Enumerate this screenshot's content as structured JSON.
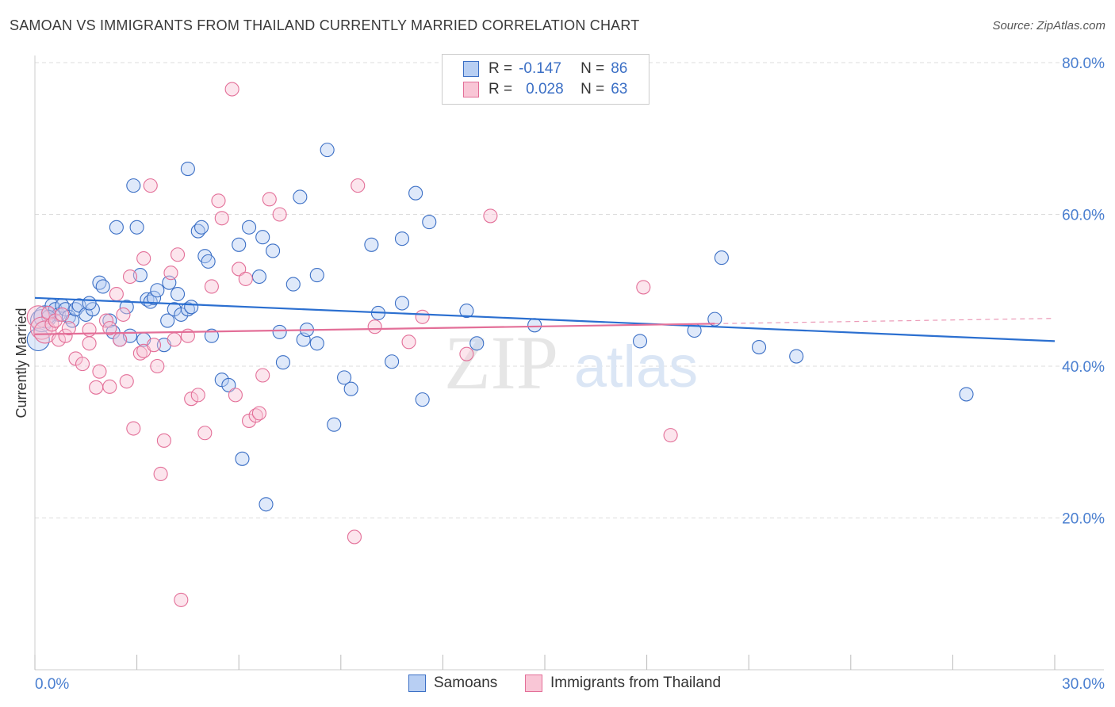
{
  "title": "SAMOAN VS IMMIGRANTS FROM THAILAND CURRENTLY MARRIED CORRELATION CHART",
  "source": "Source: ZipAtlas.com",
  "legend": {
    "r_label": "R =",
    "n_label": "N =",
    "rows": [
      {
        "r": "-0.147",
        "n": "86"
      },
      {
        "r": "0.028",
        "n": "63"
      }
    ]
  },
  "watermark": {
    "zip": "ZIP",
    "atlas": "atlas"
  },
  "colors": {
    "blue": "#3b6fc5",
    "blue_fill": "#b8cff3",
    "blue_line": "#2b6fd0",
    "pink": "#e36f98",
    "pink_fill": "#f9c6d6",
    "pink_line": "#e36f98",
    "tick_label": "#4a7fd0"
  },
  "chart_data": {
    "type": "scatter",
    "title": "SAMOAN VS IMMIGRANTS FROM THAILAND CURRENTLY MARRIED CORRELATION CHART",
    "xlabel": "",
    "ylabel": "Currently Married",
    "xlim": [
      0,
      30
    ],
    "ylim": [
      0,
      83
    ],
    "x_tick_labels": [
      "0.0%",
      "30.0%"
    ],
    "y_ticks": [
      20,
      40,
      60,
      80
    ],
    "y_tick_labels": [
      "20.0%",
      "40.0%",
      "60.0%",
      "80.0%"
    ],
    "grid": true,
    "series": [
      {
        "name": "Samoans",
        "r": -0.147,
        "n": 86,
        "trend": {
          "x": [
            0,
            30
          ],
          "y": [
            49.0,
            43.3
          ],
          "dashed_after": null
        },
        "points": [
          [
            0.1,
            43.5
          ],
          [
            0.2,
            46.0
          ],
          [
            0.3,
            46.5
          ],
          [
            0.4,
            47.0
          ],
          [
            0.5,
            48.0
          ],
          [
            0.6,
            47.5
          ],
          [
            0.7,
            46.8
          ],
          [
            0.8,
            48.0
          ],
          [
            0.9,
            47.5
          ],
          [
            1.0,
            46.5
          ],
          [
            1.1,
            46.0
          ],
          [
            1.2,
            47.5
          ],
          [
            1.3,
            48.0
          ],
          [
            1.5,
            46.8
          ],
          [
            1.7,
            47.5
          ],
          [
            1.9,
            51.0
          ],
          [
            2.0,
            50.5
          ],
          [
            2.2,
            46.0
          ],
          [
            2.3,
            44.5
          ],
          [
            2.4,
            58.3
          ],
          [
            2.5,
            43.5
          ],
          [
            2.7,
            47.8
          ],
          [
            2.8,
            44.0
          ],
          [
            2.9,
            63.8
          ],
          [
            3.0,
            58.3
          ],
          [
            3.1,
            52.0
          ],
          [
            3.2,
            43.5
          ],
          [
            3.3,
            48.8
          ],
          [
            3.4,
            48.5
          ],
          [
            3.5,
            49.0
          ],
          [
            3.6,
            50.0
          ],
          [
            3.8,
            42.8
          ],
          [
            3.9,
            46.0
          ],
          [
            3.95,
            51.0
          ],
          [
            4.1,
            47.5
          ],
          [
            4.2,
            49.5
          ],
          [
            4.3,
            46.8
          ],
          [
            4.5,
            47.5
          ],
          [
            4.6,
            47.8
          ],
          [
            4.5,
            66.0
          ],
          [
            4.8,
            57.8
          ],
          [
            4.9,
            58.3
          ],
          [
            5.0,
            54.5
          ],
          [
            5.1,
            53.8
          ],
          [
            5.2,
            44.0
          ],
          [
            5.5,
            38.2
          ],
          [
            5.7,
            37.5
          ],
          [
            6.0,
            56.0
          ],
          [
            6.1,
            27.8
          ],
          [
            6.3,
            58.3
          ],
          [
            6.6,
            51.8
          ],
          [
            6.7,
            57.0
          ],
          [
            6.8,
            21.8
          ],
          [
            7.0,
            55.2
          ],
          [
            7.2,
            44.5
          ],
          [
            7.3,
            40.5
          ],
          [
            7.6,
            50.8
          ],
          [
            7.8,
            62.3
          ],
          [
            7.9,
            43.5
          ],
          [
            8.0,
            44.8
          ],
          [
            8.3,
            43.0
          ],
          [
            8.3,
            52.0
          ],
          [
            8.6,
            68.5
          ],
          [
            8.8,
            32.3
          ],
          [
            9.1,
            38.5
          ],
          [
            9.3,
            37.0
          ],
          [
            9.9,
            56.0
          ],
          [
            10.1,
            47.0
          ],
          [
            10.5,
            40.6
          ],
          [
            10.8,
            56.8
          ],
          [
            10.8,
            48.3
          ],
          [
            11.2,
            62.8
          ],
          [
            11.4,
            35.6
          ],
          [
            11.6,
            59.0
          ],
          [
            12.7,
            47.3
          ],
          [
            13.0,
            43.0
          ],
          [
            14.7,
            45.4
          ],
          [
            17.8,
            43.3
          ],
          [
            19.4,
            44.7
          ],
          [
            20.0,
            46.2
          ],
          [
            20.2,
            54.3
          ],
          [
            21.3,
            42.5
          ],
          [
            22.4,
            41.3
          ],
          [
            27.4,
            36.3
          ],
          [
            0.4,
            46.5
          ],
          [
            1.6,
            48.3
          ]
        ]
      },
      {
        "name": "Immigrants from Thailand",
        "r": 0.028,
        "n": 63,
        "trend": {
          "x": [
            0,
            30
          ],
          "y": [
            44.2,
            46.3
          ],
          "dashed_after": 20.0
        },
        "points": [
          [
            0.1,
            46.5
          ],
          [
            0.2,
            45.0
          ],
          [
            0.3,
            44.5
          ],
          [
            0.4,
            47.0
          ],
          [
            0.5,
            45.5
          ],
          [
            0.6,
            46.0
          ],
          [
            0.7,
            43.5
          ],
          [
            0.8,
            46.8
          ],
          [
            0.9,
            44.0
          ],
          [
            1.0,
            45.0
          ],
          [
            1.2,
            41.0
          ],
          [
            1.4,
            40.3
          ],
          [
            1.6,
            43.0
          ],
          [
            1.6,
            44.8
          ],
          [
            1.8,
            37.2
          ],
          [
            1.9,
            39.3
          ],
          [
            2.1,
            46.0
          ],
          [
            2.2,
            37.3
          ],
          [
            2.2,
            45.0
          ],
          [
            2.4,
            49.5
          ],
          [
            2.5,
            43.5
          ],
          [
            2.6,
            46.8
          ],
          [
            2.7,
            38.0
          ],
          [
            2.8,
            51.8
          ],
          [
            2.9,
            31.8
          ],
          [
            3.1,
            41.7
          ],
          [
            3.2,
            42.0
          ],
          [
            3.2,
            54.2
          ],
          [
            3.4,
            63.8
          ],
          [
            3.5,
            42.8
          ],
          [
            3.6,
            40.0
          ],
          [
            3.7,
            25.8
          ],
          [
            3.8,
            30.2
          ],
          [
            4.0,
            52.3
          ],
          [
            4.1,
            43.5
          ],
          [
            4.2,
            54.7
          ],
          [
            4.3,
            9.2
          ],
          [
            4.5,
            44.0
          ],
          [
            4.6,
            35.7
          ],
          [
            4.8,
            36.2
          ],
          [
            5.0,
            31.2
          ],
          [
            5.2,
            50.5
          ],
          [
            5.4,
            61.8
          ],
          [
            5.5,
            59.5
          ],
          [
            5.8,
            76.5
          ],
          [
            5.9,
            36.2
          ],
          [
            6.0,
            52.8
          ],
          [
            6.2,
            51.5
          ],
          [
            6.3,
            32.8
          ],
          [
            6.5,
            33.5
          ],
          [
            6.6,
            33.8
          ],
          [
            6.7,
            38.8
          ],
          [
            6.9,
            62.0
          ],
          [
            7.2,
            60.0
          ],
          [
            9.4,
            17.5
          ],
          [
            9.5,
            63.8
          ],
          [
            10.0,
            45.2
          ],
          [
            11.0,
            43.2
          ],
          [
            11.4,
            46.5
          ],
          [
            12.7,
            41.6
          ],
          [
            13.4,
            59.8
          ],
          [
            17.9,
            50.4
          ],
          [
            18.7,
            30.9
          ]
        ]
      }
    ]
  }
}
